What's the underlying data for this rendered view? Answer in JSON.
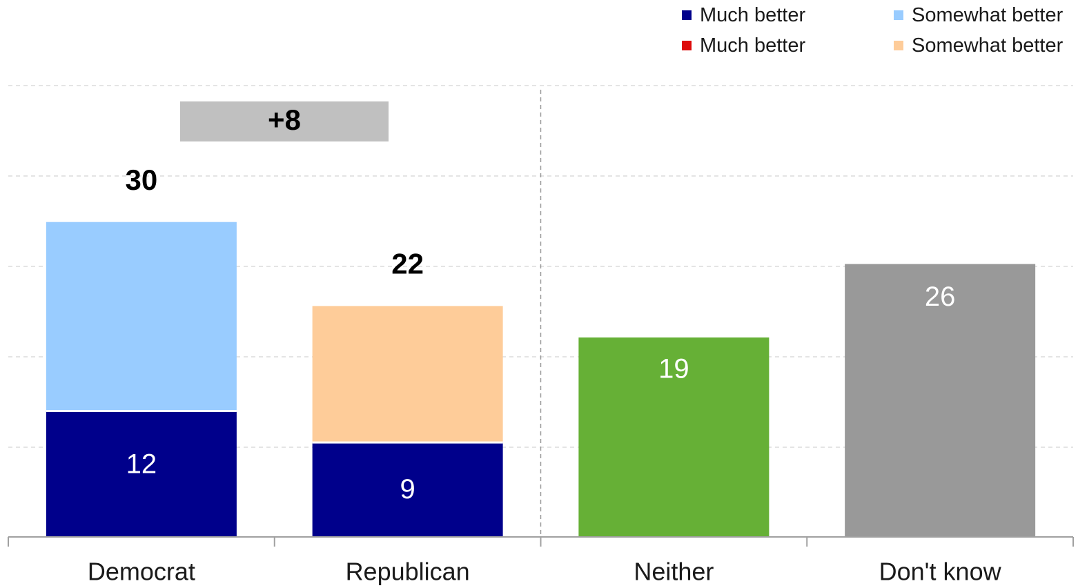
{
  "chart_data": {
    "type": "bar",
    "stacked": true,
    "categories": [
      "Democrat",
      "Republican",
      "Neither",
      "Don't know"
    ],
    "series": [
      {
        "name": "Much better",
        "color": "#00008b",
        "values": [
          12,
          9,
          null,
          null
        ],
        "label_color": "#ffffff"
      },
      {
        "name": "Somewhat better",
        "color": "#99ccff",
        "values": [
          18,
          null,
          null,
          null
        ],
        "label_color": "#ffffff"
      },
      {
        "name": "Much better",
        "color": "#dd0a0a",
        "values": [
          null,
          null,
          null,
          null
        ],
        "label_color": "#ffffff"
      },
      {
        "name": "Somewhat better",
        "color": "#fecc99",
        "values": [
          null,
          13,
          null,
          null
        ],
        "label_color": "#ffffff"
      },
      {
        "name": "",
        "color": "#66b036",
        "values": [
          null,
          null,
          19,
          null
        ],
        "label_color": "#ffffff"
      },
      {
        "name": "",
        "color": "#999999",
        "values": [
          null,
          null,
          null,
          26
        ],
        "label_color": "#ffffff"
      }
    ],
    "data_labels": {
      "Democrat": {
        "Much better": "12"
      },
      "Republican": {
        "Much better": "9"
      },
      "Neither": "19",
      "Don't know": "26"
    },
    "totals": [
      {
        "category": "Democrat",
        "value": "30"
      },
      {
        "category": "Republican",
        "value": "22"
      }
    ],
    "annotation": {
      "text": "+8",
      "color": "#c0c0c0"
    },
    "ylim": [
      0,
      43
    ],
    "grid": true,
    "legend": [
      {
        "label": "Much better",
        "color": "#00008b",
        "position": "top-right-col1-row1"
      },
      {
        "label": "Somewhat better",
        "color": "#99ccff",
        "position": "top-right-col2-row1"
      },
      {
        "label": "Much better",
        "color": "#dd0a0a",
        "position": "top-right-col1-row2"
      },
      {
        "label": "Somewhat better",
        "color": "#fecc99",
        "position": "top-right-col2-row2"
      }
    ],
    "title": "",
    "xlabel": "",
    "ylabel": ""
  }
}
